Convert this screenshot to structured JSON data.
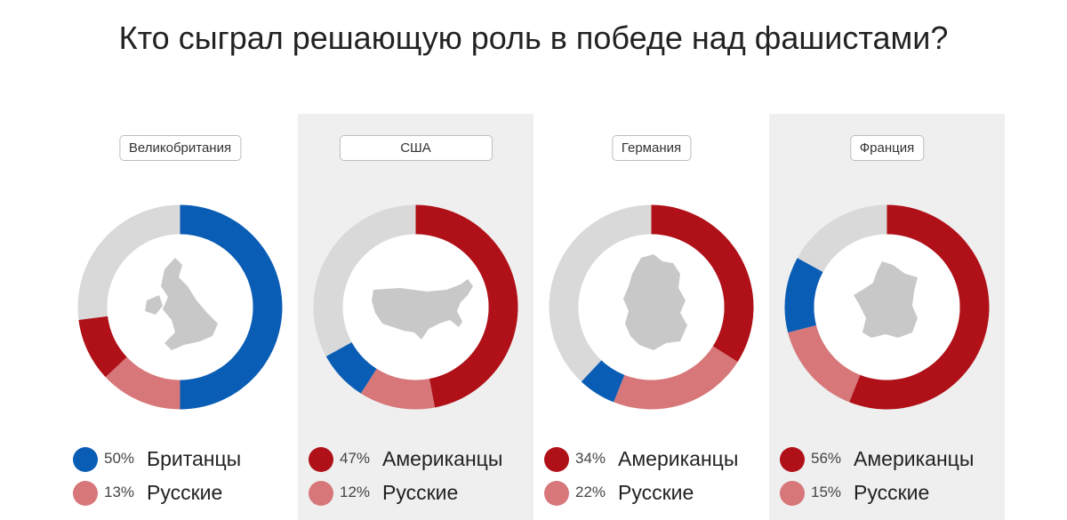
{
  "title": "Кто сыграл решающую роль в победе над фашистами?",
  "colors": {
    "blue": "#0a5db5",
    "red": "#b01018",
    "pink": "#d77779",
    "grey": "#d9d9d9",
    "map": "#c8c8c8"
  },
  "chart_data": [
    {
      "type": "pie",
      "title": "Великобритания",
      "map_icon": "uk-map-icon",
      "slices": [
        {
          "label": "Британцы",
          "percent_label": "50%",
          "value": 50,
          "color": "#0a5db5"
        },
        {
          "label": "Русские",
          "percent_label": "13%",
          "value": 13,
          "color": "#d77779"
        },
        {
          "value": 10,
          "color": "#b01018"
        },
        {
          "value": 27,
          "color": "#d9d9d9"
        }
      ]
    },
    {
      "type": "pie",
      "title": "США",
      "map_icon": "usa-map-icon",
      "slices": [
        {
          "label": "Американцы",
          "percent_label": "47%",
          "value": 47,
          "color": "#b01018"
        },
        {
          "label": "Русские",
          "percent_label": "12%",
          "value": 12,
          "color": "#d77779"
        },
        {
          "value": 8,
          "color": "#0a5db5"
        },
        {
          "value": 33,
          "color": "#d9d9d9"
        }
      ]
    },
    {
      "type": "pie",
      "title": "Германия",
      "map_icon": "germany-map-icon",
      "slices": [
        {
          "label": "Американцы",
          "percent_label": "34%",
          "value": 34,
          "color": "#b01018"
        },
        {
          "label": "Русские",
          "percent_label": "22%",
          "value": 22,
          "color": "#d77779"
        },
        {
          "value": 6,
          "color": "#0a5db5"
        },
        {
          "value": 38,
          "color": "#d9d9d9"
        }
      ]
    },
    {
      "type": "pie",
      "title": "Франция",
      "map_icon": "france-map-icon",
      "slices": [
        {
          "label": "Американцы",
          "percent_label": "56%",
          "value": 56,
          "color": "#b01018"
        },
        {
          "label": "Русские",
          "percent_label": "15%",
          "value": 15,
          "color": "#d77779"
        },
        {
          "value": 12,
          "color": "#0a5db5"
        },
        {
          "value": 17,
          "color": "#d9d9d9"
        }
      ]
    }
  ]
}
